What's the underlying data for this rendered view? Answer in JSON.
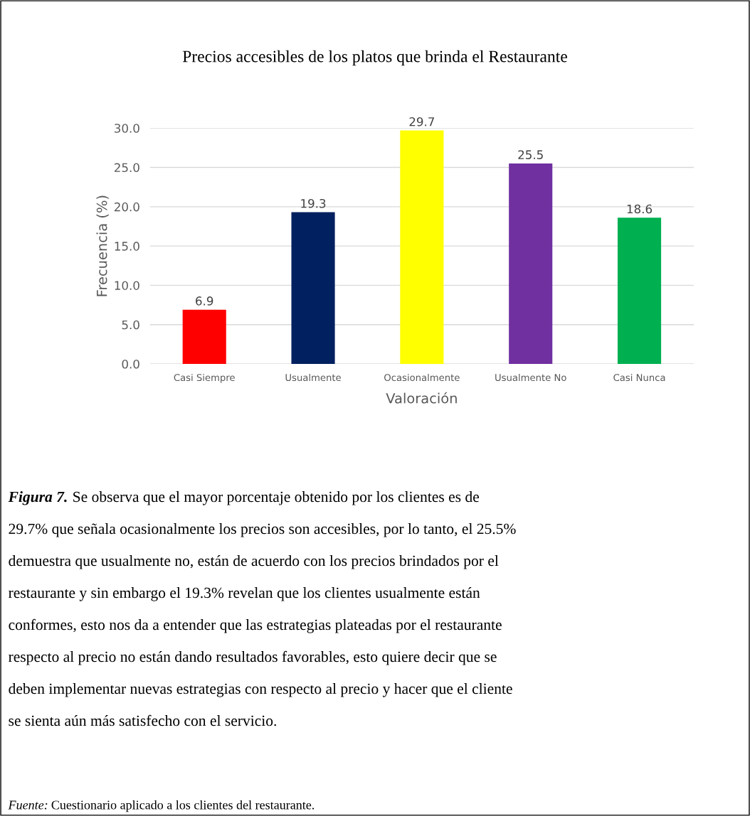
{
  "chart_data": {
    "type": "bar",
    "title": "Precios accesibles de los platos que brinda el Restaurante",
    "xlabel": "Valoración",
    "ylabel": "Frecuencia (%)",
    "categories": [
      "Casi Siempre",
      "Usualmente",
      "Ocasionalmente",
      "Usualmente No",
      "Casi Nunca"
    ],
    "values": [
      6.9,
      19.3,
      29.7,
      25.5,
      18.6
    ],
    "colors": [
      "#ff0000",
      "#002060",
      "#ffff00",
      "#7030a0",
      "#00b050"
    ],
    "ylim": [
      0,
      30
    ],
    "yticks": [
      {
        "value": 0,
        "label": "0.0"
      },
      {
        "value": 5,
        "label": "5.0"
      },
      {
        "value": 10,
        "label": "10.0"
      },
      {
        "value": 15,
        "label": "15.0"
      },
      {
        "value": 20,
        "label": "20.0"
      },
      {
        "value": 25,
        "label": "25.0"
      },
      {
        "value": 30,
        "label": "30.0"
      }
    ],
    "grid": "y",
    "data_labels": true,
    "annotations": [
      "Figura 7.",
      "Se observa que el mayor porcentaje obtenido por los clientes es de\n29.7% que señala ocasionalmente los precios son accesibles, por lo tanto, el 25.5%\ndemuestra que usualmente no, están de acuerdo con los precios brindados por el\nrestaurante y sin embargo el 19.3% revelan que los clientes usualmente están\nconformes, esto nos da a entender que las estrategias plateadas por el restaurante\nrespecto al precio no están dando resultados favorables, esto quiere decir que se\ndeben implementar nuevas estrategias con respecto al precio y hacer que el cliente\nse sienta aún más satisfecho con el servicio.",
      "Fuente:",
      "Cuestionario aplicado a los clientes del restaurante."
    ]
  }
}
